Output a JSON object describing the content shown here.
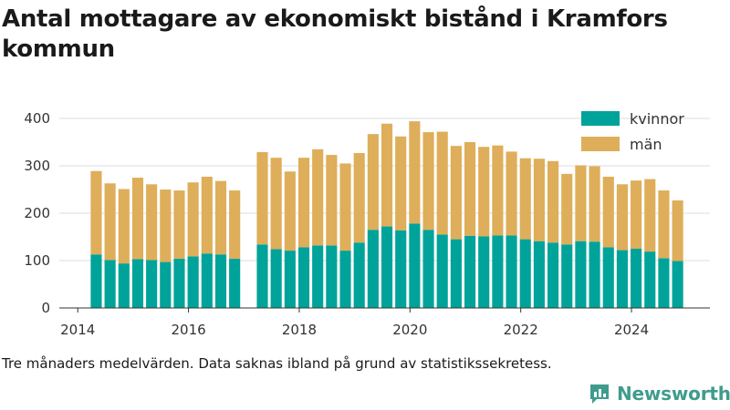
{
  "title": "Antal mottagare av ekonomiskt bistånd i Kramfors kommun",
  "caption": "Tre månaders medelvärden. Data saknas ibland på grund av statistikssekretess.",
  "brand": {
    "name": "Newsworthy",
    "icon": "chart-bars-icon"
  },
  "colors": {
    "kvinnor": "#00a39a",
    "man": "#deae5a",
    "grid": "#dddddd",
    "axis": "#333333"
  },
  "chart_data": {
    "type": "bar",
    "stacked": true,
    "title": "Antal mottagare av ekonomiskt bistånd i Kramfors kommun",
    "xlabel": "",
    "ylabel": "",
    "ylim": [
      0,
      400
    ],
    "yticks": [
      0,
      100,
      200,
      300,
      400
    ],
    "x_ticks": [
      "2014",
      "2016",
      "2018",
      "2020",
      "2022",
      "2024"
    ],
    "xlim": [
      "2013-09",
      "2025-06"
    ],
    "grid": true,
    "legend_position": "top-right",
    "x": [
      "2014-05",
      "2014-08",
      "2014-11",
      "2015-02",
      "2015-05",
      "2015-08",
      "2015-11",
      "2016-02",
      "2016-05",
      "2016-08",
      "2016-11",
      "2017-05",
      "2017-08",
      "2017-11",
      "2018-02",
      "2018-05",
      "2018-08",
      "2018-11",
      "2019-02",
      "2019-05",
      "2019-08",
      "2019-11",
      "2020-02",
      "2020-05",
      "2020-08",
      "2020-11",
      "2021-02",
      "2021-05",
      "2021-08",
      "2021-11",
      "2022-02",
      "2022-05",
      "2022-08",
      "2022-11",
      "2023-02",
      "2023-05",
      "2023-08",
      "2023-11",
      "2024-02",
      "2024-05",
      "2024-08",
      "2024-11"
    ],
    "series": [
      {
        "name": "kvinnor",
        "values": [
          113,
          101,
          94,
          103,
          101,
          97,
          104,
          109,
          115,
          113,
          104,
          134,
          124,
          121,
          128,
          132,
          132,
          121,
          138,
          165,
          172,
          164,
          178,
          165,
          155,
          145,
          152,
          151,
          153,
          153,
          145,
          141,
          138,
          134,
          141,
          140,
          128,
          122,
          125,
          119,
          105,
          99
        ]
      },
      {
        "name": "män",
        "values": [
          176,
          162,
          157,
          172,
          160,
          153,
          144,
          156,
          162,
          155,
          144,
          195,
          193,
          167,
          189,
          203,
          191,
          184,
          189,
          202,
          217,
          198,
          216,
          206,
          217,
          197,
          198,
          189,
          190,
          177,
          171,
          174,
          172,
          149,
          160,
          159,
          149,
          139,
          144,
          153,
          143,
          128
        ]
      }
    ]
  }
}
